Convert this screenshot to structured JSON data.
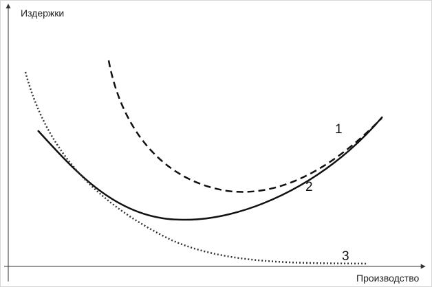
{
  "axes": {
    "y_label": "Издержки",
    "x_label": "Производство"
  },
  "curves": [
    {
      "label": "1"
    },
    {
      "label": "2"
    },
    {
      "label": "3"
    }
  ]
}
